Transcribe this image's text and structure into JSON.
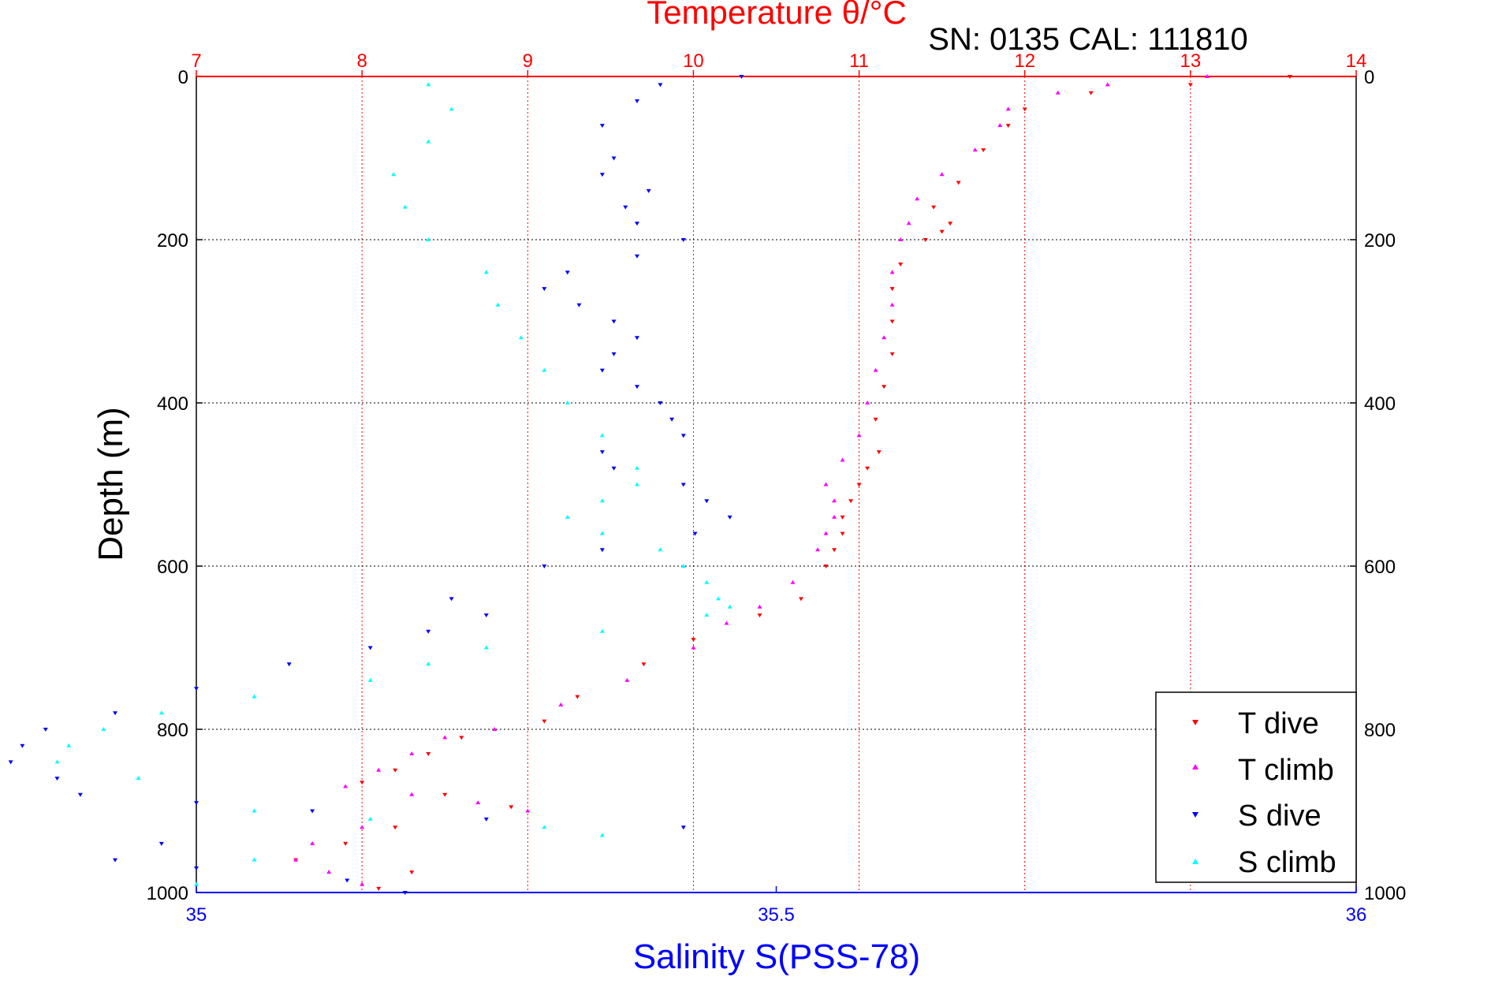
{
  "chart_data": {
    "type": "scatter",
    "title": "Temperature θ/°C",
    "subtitle": "SN: 0135  CAL: 111810",
    "ylabel": "Depth (m)",
    "xlabel": "Salinity S(PSS-78)",
    "temperature_axis": {
      "label": "Temperature θ/°C",
      "range": [
        7,
        14
      ],
      "ticks": [
        "7",
        "8",
        "9",
        "10",
        "11",
        "12",
        "13",
        "14"
      ],
      "color": "#ff0000"
    },
    "salinity_axis": {
      "label": "Salinity S(PSS-78)",
      "range": [
        35,
        36
      ],
      "ticks": [
        "35",
        "35.5",
        "36"
      ],
      "color": "#0000ff"
    },
    "depth_axis": {
      "range": [
        0,
        1000
      ],
      "reversed": true,
      "ticks": [
        "0",
        "200",
        "400",
        "600",
        "800",
        "1000"
      ]
    },
    "grid": true,
    "legend_position": "bottom-right",
    "series": [
      {
        "name": "T dive",
        "axis": "temperature",
        "marker": "triangle-down",
        "color": "#ff0000",
        "x": [
          13.6,
          13.0,
          12.4,
          12.0,
          11.9,
          11.75,
          11.6,
          11.45,
          11.55,
          11.5,
          11.4,
          11.25,
          11.2,
          11.2,
          11.2,
          11.15,
          11.1,
          11.12,
          11.05,
          11.0,
          10.95,
          10.9,
          10.9,
          10.85,
          10.8,
          10.65,
          10.4,
          10.0,
          9.7,
          9.3,
          9.1,
          8.6,
          8.4,
          8.2,
          8.0,
          8.5,
          8.9,
          8.2,
          7.9,
          7.6,
          8.3,
          8.1
        ],
        "y": [
          0,
          10,
          20,
          40,
          60,
          90,
          130,
          160,
          180,
          190,
          200,
          230,
          260,
          300,
          340,
          380,
          420,
          460,
          480,
          500,
          520,
          540,
          560,
          580,
          600,
          640,
          660,
          690,
          720,
          760,
          790,
          810,
          830,
          850,
          865,
          880,
          895,
          920,
          940,
          960,
          975,
          995
        ]
      },
      {
        "name": "T climb",
        "axis": "temperature",
        "marker": "triangle-up",
        "color": "#ff00ff",
        "x": [
          13.1,
          12.5,
          12.2,
          11.9,
          11.85,
          11.7,
          11.5,
          11.35,
          11.3,
          11.25,
          11.2,
          11.2,
          11.15,
          11.1,
          11.05,
          11.0,
          10.9,
          10.8,
          10.85,
          10.85,
          10.8,
          10.75,
          10.6,
          10.4,
          10.2,
          10.0,
          9.6,
          9.2,
          8.8,
          8.5,
          8.3,
          8.1,
          7.9,
          8.3,
          8.7,
          9.0,
          8.0,
          7.7,
          7.6,
          7.8,
          8.0
        ],
        "y": [
          0,
          10,
          20,
          40,
          60,
          90,
          120,
          150,
          180,
          200,
          240,
          280,
          320,
          360,
          400,
          440,
          470,
          500,
          520,
          540,
          560,
          580,
          620,
          650,
          670,
          700,
          740,
          770,
          800,
          810,
          830,
          850,
          870,
          880,
          890,
          900,
          920,
          940,
          960,
          975,
          990
        ]
      },
      {
        "name": "S dive",
        "axis": "salinity",
        "marker": "triangle-down",
        "color": "#0000ff",
        "x": [
          35.47,
          35.4,
          35.38,
          35.35,
          35.36,
          35.35,
          35.39,
          35.37,
          35.38,
          35.42,
          35.38,
          35.32,
          35.3,
          35.33,
          35.36,
          35.38,
          35.36,
          35.35,
          35.38,
          35.4,
          35.41,
          35.42,
          35.35,
          35.36,
          35.42,
          35.44,
          35.46,
          35.43,
          35.35,
          35.3,
          35.22,
          35.25,
          35.2,
          35.15,
          35.08,
          35.0,
          34.93,
          34.87,
          34.85,
          34.84,
          34.88,
          34.9,
          35.0,
          35.1,
          35.25,
          35.42,
          34.97,
          34.93,
          35.0,
          35.13,
          35.18
        ],
        "y": [
          0,
          10,
          30,
          60,
          100,
          120,
          140,
          160,
          180,
          200,
          220,
          240,
          260,
          280,
          300,
          320,
          340,
          360,
          380,
          400,
          420,
          440,
          460,
          480,
          500,
          520,
          540,
          560,
          580,
          600,
          640,
          660,
          680,
          700,
          720,
          750,
          780,
          800,
          820,
          840,
          860,
          880,
          890,
          900,
          910,
          920,
          940,
          960,
          970,
          985,
          1000
        ]
      },
      {
        "name": "S climb",
        "axis": "salinity",
        "marker": "triangle-up",
        "color": "#00ffff",
        "x": [
          35.2,
          35.22,
          35.2,
          35.17,
          35.18,
          35.2,
          35.25,
          35.26,
          35.28,
          35.3,
          35.32,
          35.35,
          35.38,
          35.38,
          35.35,
          35.32,
          35.35,
          35.4,
          35.42,
          35.44,
          35.45,
          35.46,
          35.44,
          35.35,
          35.25,
          35.2,
          35.15,
          35.05,
          34.97,
          34.92,
          34.89,
          34.88,
          34.95,
          35.05,
          35.15,
          35.3,
          35.35,
          35.05,
          35.0
        ],
        "y": [
          10,
          40,
          80,
          120,
          160,
          200,
          240,
          280,
          320,
          360,
          400,
          440,
          480,
          500,
          520,
          540,
          560,
          580,
          600,
          620,
          640,
          650,
          660,
          680,
          700,
          720,
          740,
          760,
          780,
          800,
          820,
          840,
          860,
          900,
          910,
          920,
          930,
          960,
          990
        ]
      }
    ],
    "legend": [
      "T dive",
      "T climb",
      "S dive",
      "S climb"
    ]
  }
}
